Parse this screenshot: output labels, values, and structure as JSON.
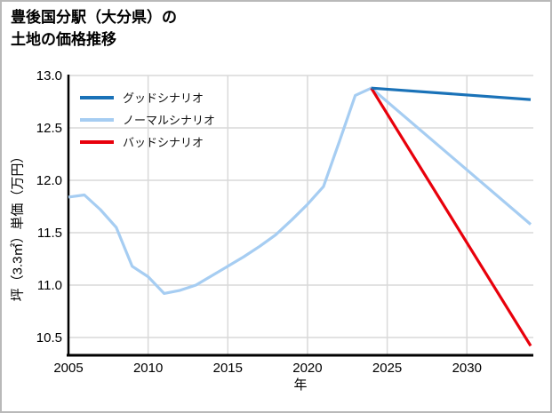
{
  "title": {
    "line1": "豊後国分駅（大分県）の",
    "line2": "土地の価格推移"
  },
  "legend": [
    {
      "label": "グッドシナリオ",
      "color": "#1a72b8"
    },
    {
      "label": "ノーマルシナリオ",
      "color": "#a6cdf2"
    },
    {
      "label": "バッドシナリオ",
      "color": "#e8000b"
    }
  ],
  "axes": {
    "xlabel": "年",
    "ylabel": "坪（3.3㎡）単価（万円）",
    "x_ticks": [
      "2005",
      "2010",
      "2015",
      "2020",
      "2025",
      "2030"
    ],
    "y_ticks": [
      "13.0",
      "12.5",
      "12.0",
      "11.5",
      "11.0",
      "10.5"
    ]
  },
  "colors": {
    "grid": "#d9d9d9",
    "spine": "#000000",
    "background": "#ffffff"
  },
  "chart_data": {
    "type": "line",
    "title": "豊後国分駅（大分県）の土地の価格推移",
    "xlabel": "年",
    "ylabel": "坪（3.3㎡）単価（万円）",
    "xlim": [
      2005,
      2034.2
    ],
    "ylim": [
      10.33,
      13.0
    ],
    "grid": true,
    "legend_position": "upper-left",
    "series": [
      {
        "name": "グッドシナリオ",
        "color": "#1a72b8",
        "x": [
          2024,
          2034
        ],
        "values": [
          12.88,
          12.77
        ]
      },
      {
        "name": "ノーマルシナリオ",
        "color": "#a6cdf2",
        "x": [
          2005,
          2006,
          2007,
          2008,
          2009,
          2010,
          2011,
          2012,
          2013,
          2014,
          2015,
          2016,
          2017,
          2018,
          2019,
          2020,
          2021,
          2022,
          2023,
          2024,
          2034
        ],
        "values": [
          11.84,
          11.86,
          11.72,
          11.55,
          11.18,
          11.08,
          10.92,
          10.95,
          11.0,
          11.09,
          11.18,
          11.27,
          11.37,
          11.48,
          11.62,
          11.77,
          11.94,
          12.37,
          12.81,
          12.88,
          11.58
        ]
      },
      {
        "name": "バッドシナリオ",
        "color": "#e8000b",
        "x": [
          2024,
          2034
        ],
        "values": [
          12.88,
          10.42
        ]
      }
    ]
  }
}
